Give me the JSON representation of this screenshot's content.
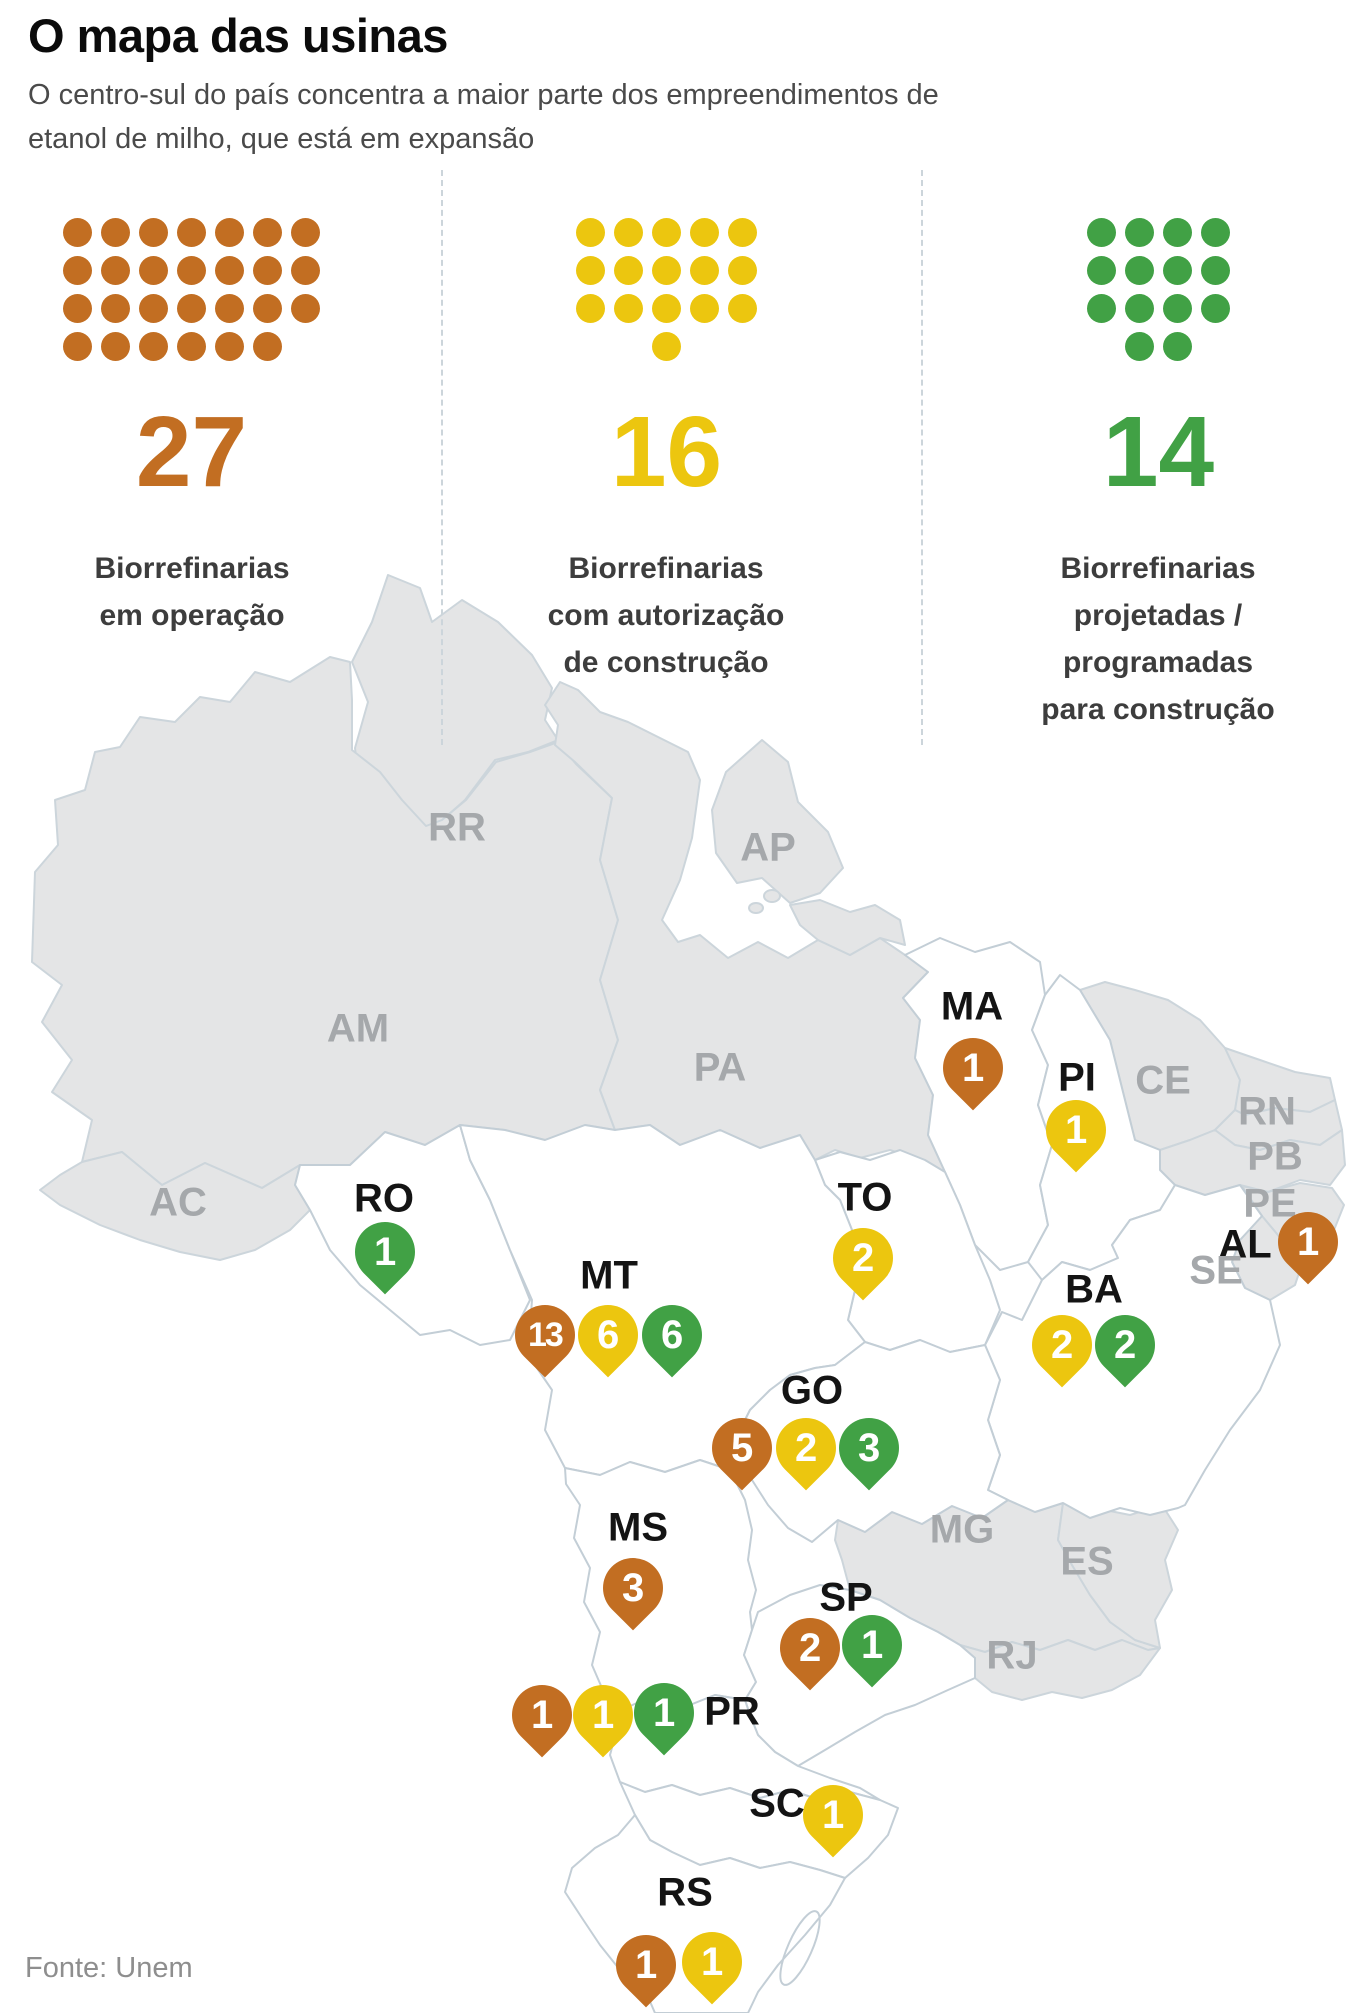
{
  "header": {
    "title": "O mapa das usinas",
    "subtitle": "O centro-sul do país concentra a maior parte dos empreendimentos de etanol de milho, que está em expansão"
  },
  "colors": {
    "operating": "#c26e22",
    "authorized": "#ecc60f",
    "planned": "#41a145",
    "state_fill_muted": "#e4e5e6",
    "state_border": "#c3ced6",
    "label_muted": "#a5a8ab",
    "label_active": "#141414"
  },
  "legend": {
    "items": [
      {
        "count": "27",
        "label_lines": [
          "Biorrefinarias",
          "em operação",
          "",
          ""
        ],
        "color": "#c26e22",
        "category": "operating",
        "rows": [
          7,
          7,
          7,
          6
        ],
        "last_align": "left"
      },
      {
        "count": "16",
        "label_lines": [
          "Biorrefinarias",
          "com  autorização",
          "de construção",
          ""
        ],
        "color": "#ecc60f",
        "category": "authorized",
        "rows": [
          5,
          5,
          5,
          1
        ],
        "last_align": "center"
      },
      {
        "count": "14",
        "label_lines": [
          "Biorrefinarias",
          "projetadas /",
          "programadas",
          "para construção"
        ],
        "color": "#41a145",
        "category": "planned",
        "rows": [
          4,
          4,
          4,
          2
        ],
        "last_align": "center"
      }
    ]
  },
  "map": {
    "state_labels": [
      {
        "text": "RR",
        "style": "muted"
      },
      {
        "text": "AP",
        "style": "muted"
      },
      {
        "text": "AM",
        "style": "muted"
      },
      {
        "text": "PA",
        "style": "muted"
      },
      {
        "text": "MA",
        "style": "active"
      },
      {
        "text": "PI",
        "style": "active"
      },
      {
        "text": "CE",
        "style": "muted"
      },
      {
        "text": "RN",
        "style": "muted"
      },
      {
        "text": "PB",
        "style": "muted"
      },
      {
        "text": "PE",
        "style": "muted"
      },
      {
        "text": "AL",
        "style": "active"
      },
      {
        "text": "SE",
        "style": "muted"
      },
      {
        "text": "AC",
        "style": "muted"
      },
      {
        "text": "RO",
        "style": "active"
      },
      {
        "text": "TO",
        "style": "active"
      },
      {
        "text": "MT",
        "style": "active"
      },
      {
        "text": "BA",
        "style": "active"
      },
      {
        "text": "GO",
        "style": "active"
      },
      {
        "text": "MS",
        "style": "active"
      },
      {
        "text": "MG",
        "style": "muted"
      },
      {
        "text": "ES",
        "style": "muted"
      },
      {
        "text": "SP",
        "style": "active"
      },
      {
        "text": "RJ",
        "style": "muted"
      },
      {
        "text": "PR",
        "style": "active"
      },
      {
        "text": "SC",
        "style": "active"
      },
      {
        "text": "RS",
        "style": "active"
      }
    ],
    "pins": [
      {
        "state": "MA",
        "category": "operating",
        "value": "1"
      },
      {
        "state": "PI",
        "category": "authorized",
        "value": "1"
      },
      {
        "state": "AL",
        "category": "operating",
        "value": "1"
      },
      {
        "state": "TO",
        "category": "authorized",
        "value": "2"
      },
      {
        "state": "BA",
        "category": "authorized",
        "value": "2"
      },
      {
        "state": "BA",
        "category": "planned",
        "value": "2"
      },
      {
        "state": "RO",
        "category": "planned",
        "value": "1"
      },
      {
        "state": "MT",
        "category": "operating",
        "value": "13"
      },
      {
        "state": "MT",
        "category": "authorized",
        "value": "6"
      },
      {
        "state": "MT",
        "category": "planned",
        "value": "6"
      },
      {
        "state": "GO",
        "category": "operating",
        "value": "5"
      },
      {
        "state": "GO",
        "category": "authorized",
        "value": "2"
      },
      {
        "state": "GO",
        "category": "planned",
        "value": "3"
      },
      {
        "state": "MS",
        "category": "operating",
        "value": "3"
      },
      {
        "state": "SP",
        "category": "operating",
        "value": "2"
      },
      {
        "state": "SP",
        "category": "planned",
        "value": "1"
      },
      {
        "state": "PR",
        "category": "operating",
        "value": "1"
      },
      {
        "state": "PR",
        "category": "authorized",
        "value": "1"
      },
      {
        "state": "PR",
        "category": "planned",
        "value": "1"
      },
      {
        "state": "SC",
        "category": "authorized",
        "value": "1"
      },
      {
        "state": "RS",
        "category": "operating",
        "value": "1"
      },
      {
        "state": "RS",
        "category": "authorized",
        "value": "1"
      }
    ]
  },
  "footer": {
    "source": "Fonte: Unem"
  }
}
